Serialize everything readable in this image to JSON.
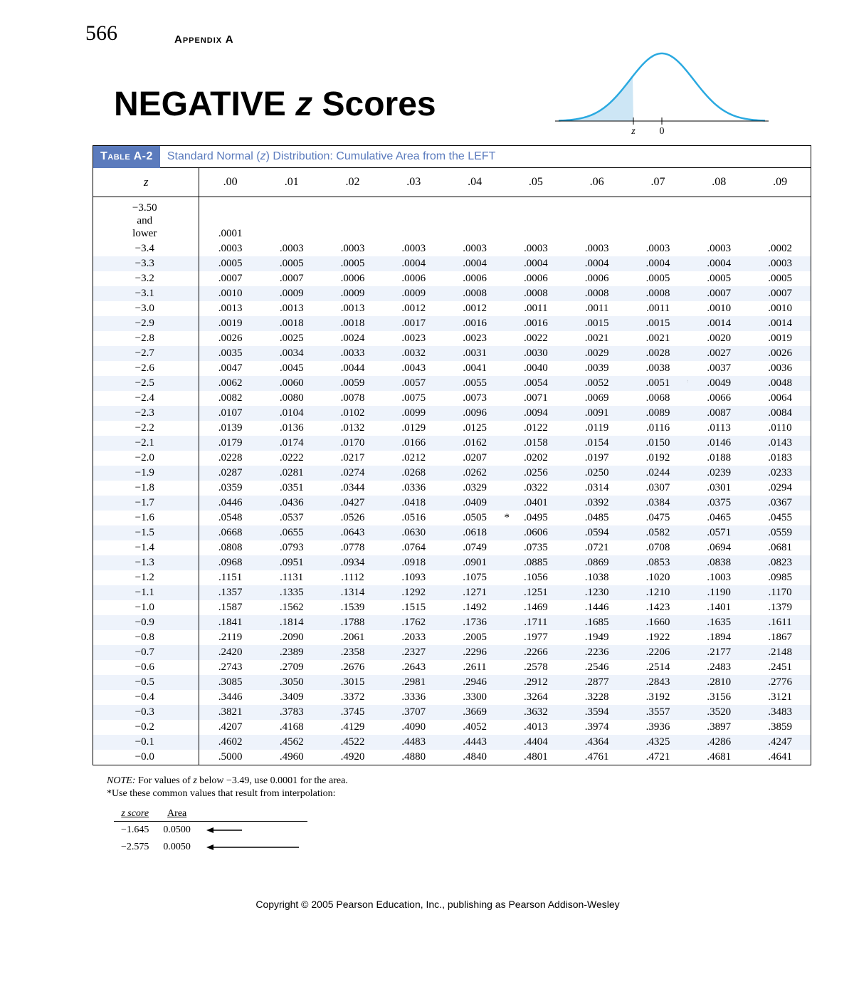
{
  "page_number": "566",
  "appendix_label": "Appendix A",
  "title_pre": "NEGATIVE ",
  "title_z": "z",
  "title_post": " Scores",
  "bell": {
    "curve_color": "#2aa9e0",
    "axis_color": "#000000",
    "fill_color": "#cde6f5",
    "z_label": "z",
    "zero_label": "0"
  },
  "table": {
    "tab_label": "Table A-2",
    "caption_pre": "Standard Normal (",
    "caption_z": "z",
    "caption_post": ") Distribution: Cumulative Area from the LEFT",
    "z_header": "z",
    "col_headers": [
      ".00",
      ".01",
      ".02",
      ".03",
      ".04",
      ".05",
      ".06",
      ".07",
      ".08",
      ".09"
    ],
    "first_row_label_lines": [
      "−3.50",
      "and",
      "lower"
    ],
    "first_row_value": ".0001",
    "shade_color": "#eef3fb",
    "rows": [
      {
        "z": "−3.4",
        "v": [
          ".0003",
          ".0003",
          ".0003",
          ".0003",
          ".0003",
          ".0003",
          ".0003",
          ".0003",
          ".0003",
          ".0002"
        ],
        "shade": false
      },
      {
        "z": "−3.3",
        "v": [
          ".0005",
          ".0005",
          ".0005",
          ".0004",
          ".0004",
          ".0004",
          ".0004",
          ".0004",
          ".0004",
          ".0003"
        ],
        "shade": true
      },
      {
        "z": "−3.2",
        "v": [
          ".0007",
          ".0007",
          ".0006",
          ".0006",
          ".0006",
          ".0006",
          ".0006",
          ".0005",
          ".0005",
          ".0005"
        ],
        "shade": false
      },
      {
        "z": "−3.1",
        "v": [
          ".0010",
          ".0009",
          ".0009",
          ".0009",
          ".0008",
          ".0008",
          ".0008",
          ".0008",
          ".0007",
          ".0007"
        ],
        "shade": true
      },
      {
        "z": "−3.0",
        "v": [
          ".0013",
          ".0013",
          ".0013",
          ".0012",
          ".0012",
          ".0011",
          ".0011",
          ".0011",
          ".0010",
          ".0010"
        ],
        "shade": false
      },
      {
        "z": "−2.9",
        "v": [
          ".0019",
          ".0018",
          ".0018",
          ".0017",
          ".0016",
          ".0016",
          ".0015",
          ".0015",
          ".0014",
          ".0014"
        ],
        "shade": true
      },
      {
        "z": "−2.8",
        "v": [
          ".0026",
          ".0025",
          ".0024",
          ".0023",
          ".0023",
          ".0022",
          ".0021",
          ".0021",
          ".0020",
          ".0019"
        ],
        "shade": false
      },
      {
        "z": "−2.7",
        "v": [
          ".0035",
          ".0034",
          ".0033",
          ".0032",
          ".0031",
          ".0030",
          ".0029",
          ".0028",
          ".0027",
          ".0026"
        ],
        "shade": true
      },
      {
        "z": "−2.6",
        "v": [
          ".0047",
          ".0045",
          ".0044",
          ".0043",
          ".0041",
          ".0040",
          ".0039",
          ".0038",
          ".0037",
          ".0036"
        ],
        "shade": false
      },
      {
        "z": "−2.5",
        "v": [
          ".0062",
          ".0060",
          ".0059",
          ".0057",
          ".0055",
          ".0054",
          ".0052",
          ".0051",
          ".0049",
          ".0048"
        ],
        "shade": true
      },
      {
        "z": "−2.4",
        "v": [
          ".0082",
          ".0080",
          ".0078",
          ".0075",
          ".0073",
          ".0071",
          ".0069",
          ".0068",
          ".0066",
          ".0064"
        ],
        "shade": false
      },
      {
        "z": "−2.3",
        "v": [
          ".0107",
          ".0104",
          ".0102",
          ".0099",
          ".0096",
          ".0094",
          ".0091",
          ".0089",
          ".0087",
          ".0084"
        ],
        "shade": true
      },
      {
        "z": "−2.2",
        "v": [
          ".0139",
          ".0136",
          ".0132",
          ".0129",
          ".0125",
          ".0122",
          ".0119",
          ".0116",
          ".0113",
          ".0110"
        ],
        "shade": false
      },
      {
        "z": "−2.1",
        "v": [
          ".0179",
          ".0174",
          ".0170",
          ".0166",
          ".0162",
          ".0158",
          ".0154",
          ".0150",
          ".0146",
          ".0143"
        ],
        "shade": true
      },
      {
        "z": "−2.0",
        "v": [
          ".0228",
          ".0222",
          ".0217",
          ".0212",
          ".0207",
          ".0202",
          ".0197",
          ".0192",
          ".0188",
          ".0183"
        ],
        "shade": false
      },
      {
        "z": "−1.9",
        "v": [
          ".0287",
          ".0281",
          ".0274",
          ".0268",
          ".0262",
          ".0256",
          ".0250",
          ".0244",
          ".0239",
          ".0233"
        ],
        "shade": true
      },
      {
        "z": "−1.8",
        "v": [
          ".0359",
          ".0351",
          ".0344",
          ".0336",
          ".0329",
          ".0322",
          ".0314",
          ".0307",
          ".0301",
          ".0294"
        ],
        "shade": false
      },
      {
        "z": "−1.7",
        "v": [
          ".0446",
          ".0436",
          ".0427",
          ".0418",
          ".0409",
          ".0401",
          ".0392",
          ".0384",
          ".0375",
          ".0367"
        ],
        "shade": true
      },
      {
        "z": "−1.6",
        "v": [
          ".0548",
          ".0537",
          ".0526",
          ".0516",
          ".0505",
          ".0495",
          ".0485",
          ".0475",
          ".0465",
          ".0455"
        ],
        "shade": false
      },
      {
        "z": "−1.5",
        "v": [
          ".0668",
          ".0655",
          ".0643",
          ".0630",
          ".0618",
          ".0606",
          ".0594",
          ".0582",
          ".0571",
          ".0559"
        ],
        "shade": true
      },
      {
        "z": "−1.4",
        "v": [
          ".0808",
          ".0793",
          ".0778",
          ".0764",
          ".0749",
          ".0735",
          ".0721",
          ".0708",
          ".0694",
          ".0681"
        ],
        "shade": false
      },
      {
        "z": "−1.3",
        "v": [
          ".0968",
          ".0951",
          ".0934",
          ".0918",
          ".0901",
          ".0885",
          ".0869",
          ".0853",
          ".0838",
          ".0823"
        ],
        "shade": true
      },
      {
        "z": "−1.2",
        "v": [
          ".1151",
          ".1131",
          ".1112",
          ".1093",
          ".1075",
          ".1056",
          ".1038",
          ".1020",
          ".1003",
          ".0985"
        ],
        "shade": false
      },
      {
        "z": "−1.1",
        "v": [
          ".1357",
          ".1335",
          ".1314",
          ".1292",
          ".1271",
          ".1251",
          ".1230",
          ".1210",
          ".1190",
          ".1170"
        ],
        "shade": true
      },
      {
        "z": "−1.0",
        "v": [
          ".1587",
          ".1562",
          ".1539",
          ".1515",
          ".1492",
          ".1469",
          ".1446",
          ".1423",
          ".1401",
          ".1379"
        ],
        "shade": false
      },
      {
        "z": "−0.9",
        "v": [
          ".1841",
          ".1814",
          ".1788",
          ".1762",
          ".1736",
          ".1711",
          ".1685",
          ".1660",
          ".1635",
          ".1611"
        ],
        "shade": true
      },
      {
        "z": "−0.8",
        "v": [
          ".2119",
          ".2090",
          ".2061",
          ".2033",
          ".2005",
          ".1977",
          ".1949",
          ".1922",
          ".1894",
          ".1867"
        ],
        "shade": false
      },
      {
        "z": "−0.7",
        "v": [
          ".2420",
          ".2389",
          ".2358",
          ".2327",
          ".2296",
          ".2266",
          ".2236",
          ".2206",
          ".2177",
          ".2148"
        ],
        "shade": true
      },
      {
        "z": "−0.6",
        "v": [
          ".2743",
          ".2709",
          ".2676",
          ".2643",
          ".2611",
          ".2578",
          ".2546",
          ".2514",
          ".2483",
          ".2451"
        ],
        "shade": false
      },
      {
        "z": "−0.5",
        "v": [
          ".3085",
          ".3050",
          ".3015",
          ".2981",
          ".2946",
          ".2912",
          ".2877",
          ".2843",
          ".2810",
          ".2776"
        ],
        "shade": true
      },
      {
        "z": "−0.4",
        "v": [
          ".3446",
          ".3409",
          ".3372",
          ".3336",
          ".3300",
          ".3264",
          ".3228",
          ".3192",
          ".3156",
          ".3121"
        ],
        "shade": false
      },
      {
        "z": "−0.3",
        "v": [
          ".3821",
          ".3783",
          ".3745",
          ".3707",
          ".3669",
          ".3632",
          ".3594",
          ".3557",
          ".3520",
          ".3483"
        ],
        "shade": true
      },
      {
        "z": "−0.2",
        "v": [
          ".4207",
          ".4168",
          ".4129",
          ".4090",
          ".4052",
          ".4013",
          ".3974",
          ".3936",
          ".3897",
          ".3859"
        ],
        "shade": false
      },
      {
        "z": "−0.1",
        "v": [
          ".4602",
          ".4562",
          ".4522",
          ".4483",
          ".4443",
          ".4404",
          ".4364",
          ".4325",
          ".4286",
          ".4247"
        ],
        "shade": true
      },
      {
        "z": "−0.0",
        "v": [
          ".5000",
          ".4960",
          ".4920",
          ".4880",
          ".4840",
          ".4801",
          ".4761",
          ".4721",
          ".4681",
          ".4641"
        ],
        "shade": false
      }
    ],
    "star_markers": [
      {
        "row_index": 9,
        "col_index": 7,
        "after": true
      },
      {
        "row_index": 18,
        "col_index": 4,
        "after": true
      }
    ]
  },
  "note_label": "NOTE:",
  "note_text_pre": " For values of ",
  "note_z": "z",
  "note_text_post": " below −3.49, use 0.0001 for the area.",
  "note2": "*Use these common values that result from interpolation:",
  "interp": {
    "zscore_header": "z score",
    "area_header": "Area",
    "rows": [
      {
        "z": "−1.645",
        "area": "0.0500"
      },
      {
        "z": "−2.575",
        "area": "0.0050"
      }
    ],
    "arrow_color": "#000000"
  },
  "copyright": "Copyright © 2005 Pearson Education, Inc., publishing as Pearson Addison-Wesley"
}
